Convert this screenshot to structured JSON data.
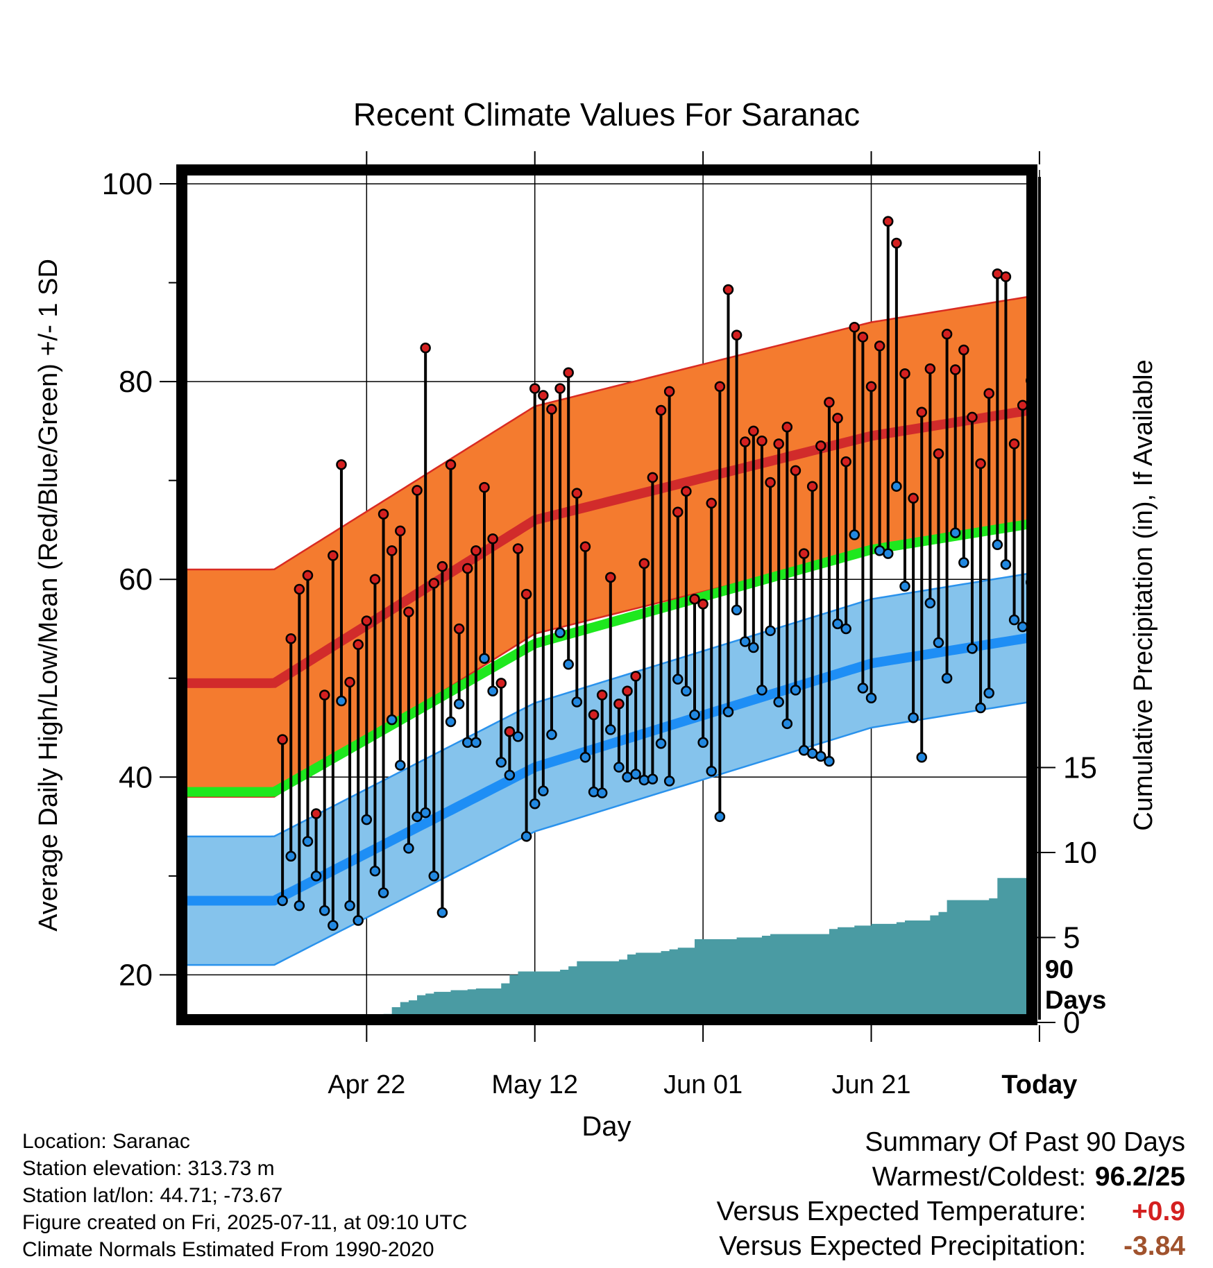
{
  "chart_data": {
    "type": "line",
    "title": "Recent Climate Values For Saranac",
    "xlabel": "Day",
    "ylabel": "Average Daily High/Low/Mean (Red/Blue/Green) +/- 1 SD",
    "y2label": "Cumulative Precipitation (in), If Available",
    "x_ticks": [
      "Apr 22",
      "May 12",
      "Jun 01",
      "Jun 21",
      "Today"
    ],
    "x_tick_day_index": [
      11,
      31,
      51,
      71,
      91
    ],
    "ylim": [
      15,
      100
    ],
    "y_ticks": [
      20,
      40,
      60,
      80,
      100
    ],
    "y2lim": [
      0,
      34
    ],
    "y2_ticks": [
      0,
      5,
      10,
      15
    ],
    "grid": true,
    "window_label": "90 Days",
    "colors": {
      "high_band": "#f47b2f",
      "high_band_edge": "#d92b22",
      "high_normal": "#d12b2b",
      "low_band": "#85c3ec",
      "low_band_edge": "#2a92ec",
      "low_normal": "#1e8ef5",
      "mean_normal": "#1ee81e",
      "precip_fill": "#4a9ba3",
      "high_marker": "#d42020",
      "low_marker": "#2288e0"
    },
    "normal_high": [
      49.5,
      66.0,
      74.5,
      78.5
    ],
    "normal_high_sd": 11.5,
    "normal_low": [
      27.5,
      41.0,
      51.5,
      55.5
    ],
    "normal_low_sd": 6.5,
    "normal_mean": [
      38.5,
      53.5,
      63.0,
      67.0
    ],
    "normal_day_index": [
      0,
      31,
      71,
      100
    ],
    "daily_high": [
      43.8,
      54.0,
      59.0,
      60.4,
      36.3,
      48.3,
      62.4,
      71.6,
      49.6,
      53.4,
      55.8,
      60.0,
      66.6,
      62.9,
      64.9,
      56.7,
      69.0,
      83.4,
      59.6,
      61.3,
      71.6,
      55.0,
      61.1,
      62.9,
      69.3,
      64.1,
      49.5,
      44.6,
      63.1,
      58.5,
      79.3,
      78.6,
      77.2,
      79.3,
      80.9,
      68.7,
      63.3,
      46.3,
      48.3,
      60.2,
      47.4,
      48.7,
      50.2,
      61.6,
      70.3,
      77.1,
      79.0,
      66.8,
      68.9,
      58.0,
      57.5,
      67.7,
      79.5,
      89.3,
      84.7,
      73.9,
      75.0,
      74.0,
      69.8,
      73.7,
      75.4,
      71.0,
      62.6,
      69.4,
      73.5,
      77.9,
      76.3,
      71.9,
      85.5,
      84.5,
      79.5,
      83.6,
      96.2,
      94.0,
      80.8,
      68.2,
      76.9,
      81.3,
      72.7,
      84.8,
      81.2,
      83.2,
      76.4,
      71.7,
      78.8,
      90.9,
      90.6,
      73.7,
      77.6,
      80.1
    ],
    "daily_low": [
      27.5,
      32.0,
      27.0,
      33.5,
      30.0,
      26.5,
      25.0,
      47.7,
      27.0,
      25.5,
      35.7,
      30.5,
      28.3,
      45.8,
      41.2,
      32.8,
      36.0,
      36.4,
      30.0,
      26.3,
      45.6,
      47.4,
      43.5,
      43.5,
      52.0,
      48.7,
      41.5,
      40.2,
      44.1,
      34.0,
      37.3,
      38.6,
      44.3,
      54.6,
      51.4,
      47.6,
      42.0,
      38.5,
      38.4,
      44.8,
      41.0,
      40.0,
      40.3,
      39.7,
      39.8,
      43.4,
      39.6,
      49.9,
      48.7,
      46.3,
      43.5,
      40.6,
      36.0,
      46.6,
      56.9,
      53.7,
      53.1,
      48.8,
      54.8,
      47.6,
      45.4,
      48.8,
      42.7,
      42.4,
      42.1,
      41.6,
      55.5,
      55.0,
      64.5,
      49.0,
      48.0,
      62.9,
      62.6,
      69.4,
      59.3,
      46.0,
      42.0,
      57.6,
      53.6,
      50.0,
      64.7,
      61.7,
      53.0,
      47.0,
      48.5,
      63.5,
      61.5,
      55.9,
      55.2,
      59.7
    ],
    "precip_day_index": [
      0,
      7,
      8,
      9,
      10,
      11,
      12,
      13,
      14,
      15,
      16,
      17,
      18,
      19,
      20,
      21,
      22,
      23,
      24,
      25,
      26,
      27,
      28,
      29,
      30,
      31,
      32,
      33,
      34,
      35,
      36,
      37,
      38,
      39,
      40,
      41,
      42,
      43,
      44,
      45,
      46,
      47,
      48,
      49,
      50,
      51,
      52,
      53,
      54,
      55,
      56,
      57,
      58,
      59,
      60,
      61,
      62,
      63,
      64,
      65,
      66,
      67,
      68,
      69,
      70,
      71,
      72,
      73,
      74,
      75,
      76,
      77,
      78,
      79,
      80,
      81,
      82,
      83,
      84,
      85,
      86,
      87,
      88,
      89,
      90
    ],
    "precip_cumulative": [
      0.0,
      0.0,
      0.2,
      0.3,
      0.35,
      0.35,
      0.4,
      0.5,
      0.9,
      1.2,
      1.3,
      1.6,
      1.7,
      1.8,
      1.8,
      1.9,
      1.9,
      1.95,
      2.0,
      2.0,
      2.0,
      2.3,
      2.8,
      3.0,
      3.0,
      3.0,
      3.0,
      3.0,
      3.1,
      3.3,
      3.6,
      3.6,
      3.6,
      3.6,
      3.6,
      3.7,
      4.0,
      4.1,
      4.1,
      4.1,
      4.2,
      4.3,
      4.4,
      4.4,
      4.9,
      4.9,
      4.9,
      4.9,
      4.9,
      5.0,
      5.0,
      5.0,
      5.1,
      5.2,
      5.2,
      5.2,
      5.2,
      5.2,
      5.2,
      5.2,
      5.5,
      5.6,
      5.6,
      5.7,
      5.7,
      5.8,
      5.8,
      5.8,
      5.9,
      6.0,
      6.0,
      6.0,
      6.3,
      6.5,
      7.2,
      7.2,
      7.2,
      7.2,
      7.2,
      7.3,
      8.5,
      8.5,
      8.5,
      8.5,
      8.5
    ]
  },
  "info": {
    "location": "Location: Saranac",
    "elevation": "Station elevation: 313.73 m",
    "latlon": "Station lat/lon: 44.71; -73.67",
    "created": "Figure created on Fri, 2025-07-11, at 09:10 UTC",
    "normals": "Climate Normals Estimated From 1990-2020"
  },
  "summary": {
    "heading": "Summary Of Past 90 Days",
    "warm_cold_label": "Warmest/Coldest:",
    "warm_cold_value": "96.2/25",
    "temp_label": "Versus Expected Temperature:",
    "temp_value": "+0.9",
    "temp_color": "#d42020",
    "precip_label": "Versus Expected Precipitation:",
    "precip_value": "-3.84",
    "precip_color": "#a0522d"
  }
}
